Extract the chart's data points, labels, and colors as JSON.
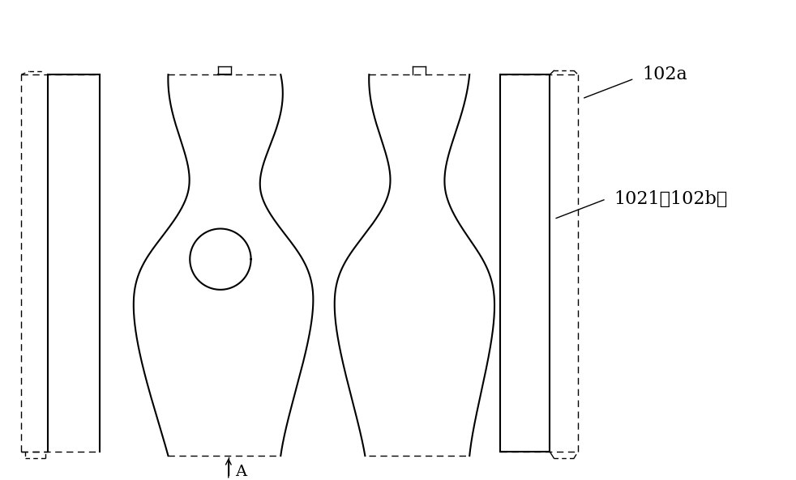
{
  "bg_color": "#ffffff",
  "line_color": "#000000",
  "dashed_color": "#000000",
  "lw_thick": 1.5,
  "lw_thin": 1.0,
  "label_102a": "102a",
  "label_1021": "1021〈102b〉",
  "arrow_label": "A"
}
